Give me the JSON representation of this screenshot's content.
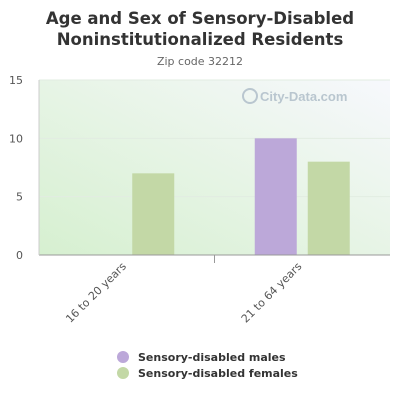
{
  "chart_data": {
    "type": "bar",
    "title_line1": "Age and Sex of Sensory-Disabled",
    "title_line2": "Noninstitutionalized Residents",
    "subtitle": "Zip code 32212",
    "watermark": "City-Data.com",
    "categories": [
      "16 to 20 years",
      "21 to 64 years"
    ],
    "series": [
      {
        "name": "Sensory-disabled males",
        "color": "#bca8d9",
        "values": [
          0,
          10
        ]
      },
      {
        "name": "Sensory-disabled females",
        "color": "#c3d8a6",
        "values": [
          7,
          8
        ]
      }
    ],
    "ylim": [
      0,
      15
    ],
    "yticks": [
      0,
      5,
      10,
      15
    ],
    "grid": true,
    "legend_position": "bottom"
  }
}
